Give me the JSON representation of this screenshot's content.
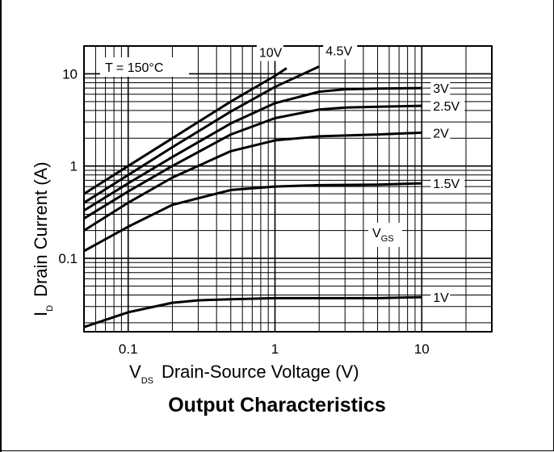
{
  "chart_data": {
    "type": "line",
    "title": "Output Characteristics",
    "xlabel": {
      "main": "V",
      "sub": "DS",
      "rest": "Drain-Source Voltage (V)"
    },
    "ylabel": {
      "main": "I",
      "sub": "D",
      "rest": "Drain Current (A)"
    },
    "x_scale": "log",
    "y_scale": "log",
    "xlim": [
      0.05,
      30
    ],
    "ylim": [
      0.016,
      20
    ],
    "x_ticks": [
      {
        "v": 0.1,
        "label": "0.1"
      },
      {
        "v": 1,
        "label": "1"
      },
      {
        "v": 10,
        "label": "10"
      }
    ],
    "y_ticks": [
      {
        "v": 0.1,
        "label": "0.1"
      },
      {
        "v": 1,
        "label": "1"
      },
      {
        "v": 10,
        "label": "10"
      }
    ],
    "grid": true,
    "annotation": "T = 150°C",
    "legend_title": {
      "main": "V",
      "sub": "GS"
    },
    "series": [
      {
        "name": "10V",
        "x": [
          0.05,
          0.1,
          0.2,
          0.5,
          1,
          1.2
        ],
        "y": [
          0.5,
          1.0,
          2.0,
          5.0,
          9.5,
          11.5
        ]
      },
      {
        "name": "4.5V",
        "x": [
          0.05,
          0.1,
          0.2,
          0.5,
          1,
          2
        ],
        "y": [
          0.4,
          0.8,
          1.6,
          3.9,
          7.2,
          12
        ]
      },
      {
        "name": "3V",
        "x": [
          0.05,
          0.1,
          0.2,
          0.5,
          1,
          2,
          3,
          5,
          10
        ],
        "y": [
          0.33,
          0.65,
          1.25,
          2.9,
          4.8,
          6.4,
          6.8,
          6.9,
          7.0
        ]
      },
      {
        "name": "2.5V",
        "x": [
          0.05,
          0.1,
          0.2,
          0.5,
          1,
          2,
          3,
          5,
          10
        ],
        "y": [
          0.27,
          0.53,
          1.0,
          2.2,
          3.3,
          4.1,
          4.3,
          4.4,
          4.5
        ]
      },
      {
        "name": "2V",
        "x": [
          0.05,
          0.1,
          0.2,
          0.5,
          1,
          2,
          5,
          10
        ],
        "y": [
          0.2,
          0.4,
          0.75,
          1.45,
          1.9,
          2.1,
          2.2,
          2.3
        ]
      },
      {
        "name": "1.5V",
        "x": [
          0.05,
          0.1,
          0.2,
          0.5,
          1,
          2,
          5,
          10
        ],
        "y": [
          0.12,
          0.22,
          0.38,
          0.55,
          0.6,
          0.62,
          0.63,
          0.65
        ]
      },
      {
        "name": "1V",
        "x": [
          0.05,
          0.1,
          0.2,
          0.3,
          0.5,
          1,
          2,
          5,
          10
        ],
        "y": [
          0.018,
          0.026,
          0.033,
          0.035,
          0.036,
          0.037,
          0.037,
          0.037,
          0.038
        ]
      }
    ],
    "series_labels": [
      {
        "series": "10V",
        "text": "10V"
      },
      {
        "series": "4.5V",
        "text": "4.5V"
      },
      {
        "series": "3V",
        "text": "3V"
      },
      {
        "series": "2.5V",
        "text": "2.5V"
      },
      {
        "series": "2V",
        "text": "2V"
      },
      {
        "series": "1.5V",
        "text": "1.5V"
      },
      {
        "series": "1V",
        "text": "1V"
      }
    ]
  }
}
